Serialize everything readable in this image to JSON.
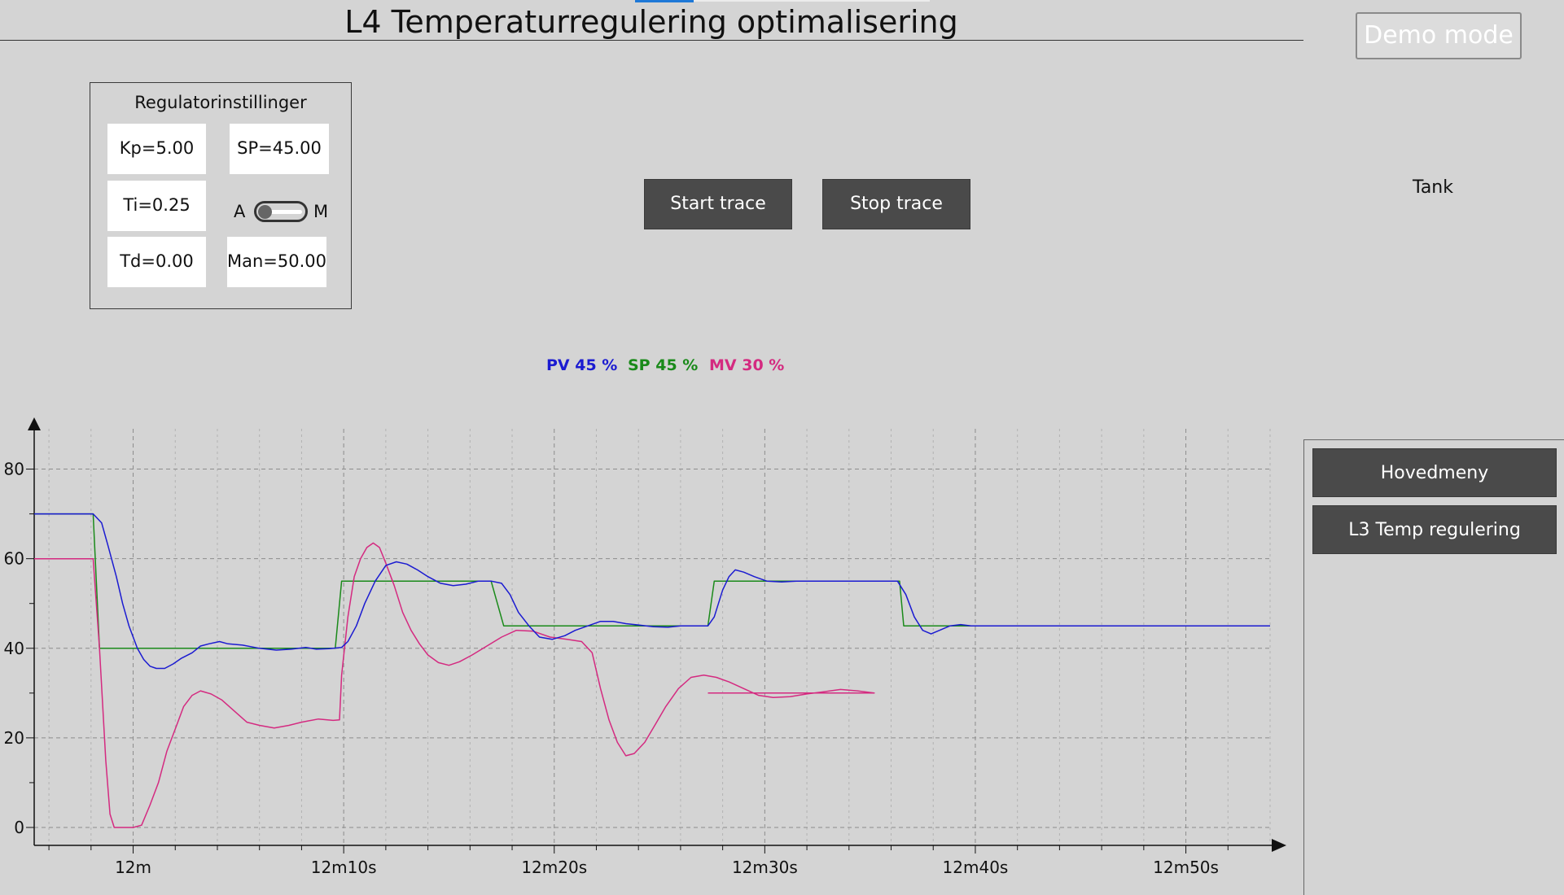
{
  "title": "L4 Temperaturregulering optimalisering",
  "demo_mode_label": "Demo mode",
  "tank_label": "Tank",
  "regulator": {
    "title": "Regulatorinstillinger",
    "kp": "Kp=5.00",
    "sp": "SP=45.00",
    "ti": "Ti=0.25",
    "td": "Td=0.00",
    "man": "Man=50.00",
    "mode_a": "A",
    "mode_m": "M"
  },
  "trace": {
    "start_label": "Start trace",
    "stop_label": "Stop trace"
  },
  "legend": {
    "pv": "PV 45 %",
    "sp": "SP 45 %",
    "mv": "MV 30 %"
  },
  "nav": {
    "home_label": "Hovedmeny",
    "l3_label": "L3 Temp regulering"
  },
  "colors": {
    "pv": "#1b1bd1",
    "sp": "#1a8a1a",
    "mv": "#d42a80",
    "accent": "#1e78d7"
  },
  "chart_data": {
    "type": "line",
    "x_unit": "seconds",
    "xlim": [
      -4.7,
      54
    ],
    "ylim": [
      -4,
      89
    ],
    "y_ticks": [
      0,
      20,
      40,
      60,
      80
    ],
    "x_ticks": [
      {
        "t": 0,
        "label": "12m"
      },
      {
        "t": 10,
        "label": "12m10s"
      },
      {
        "t": 20,
        "label": "12m20s"
      },
      {
        "t": 30,
        "label": "12m30s"
      },
      {
        "t": 40,
        "label": "12m40s"
      },
      {
        "t": 50,
        "label": "12m50s"
      }
    ],
    "grid": true,
    "series": [
      {
        "name": "SP",
        "color_key": "sp",
        "points": [
          [
            -5.8,
            70
          ],
          [
            -1.9,
            70
          ],
          [
            -1.6,
            40
          ],
          [
            9.6,
            40
          ],
          [
            9.9,
            55
          ],
          [
            17.0,
            55
          ],
          [
            17.6,
            45
          ],
          [
            27.3,
            45
          ],
          [
            27.6,
            55
          ],
          [
            36.4,
            55
          ],
          [
            36.6,
            45
          ],
          [
            54.1,
            45
          ]
        ]
      },
      {
        "name": "PV",
        "color_key": "pv",
        "points": [
          [
            -5.8,
            70
          ],
          [
            -1.9,
            70
          ],
          [
            -1.5,
            68
          ],
          [
            -1.2,
            63
          ],
          [
            -0.8,
            56
          ],
          [
            -0.5,
            50
          ],
          [
            -0.2,
            45
          ],
          [
            0.2,
            40
          ],
          [
            0.5,
            37.5
          ],
          [
            0.8,
            36
          ],
          [
            1.1,
            35.5
          ],
          [
            1.5,
            35.5
          ],
          [
            1.9,
            36.5
          ],
          [
            2.3,
            37.8
          ],
          [
            2.8,
            39
          ],
          [
            3.2,
            40.5
          ],
          [
            3.6,
            41
          ],
          [
            4.1,
            41.5
          ],
          [
            4.5,
            41
          ],
          [
            5.2,
            40.7
          ],
          [
            6.0,
            40
          ],
          [
            6.8,
            39.6
          ],
          [
            7.5,
            39.8
          ],
          [
            8.2,
            40.2
          ],
          [
            8.7,
            39.8
          ],
          [
            9.3,
            39.9
          ],
          [
            9.9,
            40.2
          ],
          [
            10.2,
            41.5
          ],
          [
            10.6,
            45
          ],
          [
            11.0,
            50
          ],
          [
            11.5,
            55
          ],
          [
            12.0,
            58.5
          ],
          [
            12.5,
            59.3
          ],
          [
            13.0,
            58.8
          ],
          [
            13.5,
            57.5
          ],
          [
            14.0,
            56
          ],
          [
            14.6,
            54.5
          ],
          [
            15.2,
            54
          ],
          [
            15.8,
            54.3
          ],
          [
            16.4,
            55
          ],
          [
            17.0,
            55
          ],
          [
            17.5,
            54.5
          ],
          [
            17.9,
            52
          ],
          [
            18.3,
            48
          ],
          [
            18.8,
            45
          ],
          [
            19.3,
            42.5
          ],
          [
            19.9,
            42
          ],
          [
            20.5,
            42.8
          ],
          [
            21.0,
            44
          ],
          [
            21.6,
            45
          ],
          [
            22.2,
            46
          ],
          [
            22.8,
            46
          ],
          [
            23.4,
            45.5
          ],
          [
            24.0,
            45.2
          ],
          [
            24.7,
            44.8
          ],
          [
            25.4,
            44.7
          ],
          [
            26.0,
            45
          ],
          [
            26.7,
            45
          ],
          [
            27.3,
            45
          ],
          [
            27.6,
            47
          ],
          [
            28.0,
            53
          ],
          [
            28.3,
            56
          ],
          [
            28.6,
            57.5
          ],
          [
            29.0,
            57
          ],
          [
            29.5,
            56
          ],
          [
            30.1,
            55
          ],
          [
            30.8,
            54.8
          ],
          [
            31.5,
            55
          ],
          [
            32.5,
            55
          ],
          [
            33.5,
            55
          ],
          [
            34.5,
            55
          ],
          [
            35.5,
            55
          ],
          [
            36.3,
            55
          ],
          [
            36.7,
            52
          ],
          [
            37.1,
            47
          ],
          [
            37.5,
            44
          ],
          [
            37.9,
            43.2
          ],
          [
            38.3,
            44
          ],
          [
            38.8,
            45
          ],
          [
            39.3,
            45.3
          ],
          [
            39.8,
            45
          ],
          [
            54.1,
            45
          ]
        ]
      },
      {
        "name": "MV",
        "color_key": "mv",
        "points": [
          [
            -5.8,
            60
          ],
          [
            -1.9,
            60
          ],
          [
            -1.6,
            40
          ],
          [
            -1.3,
            15
          ],
          [
            -1.1,
            3
          ],
          [
            -0.9,
            0
          ],
          [
            -0.5,
            0
          ],
          [
            0,
            0
          ],
          [
            0.4,
            0.5
          ],
          [
            0.8,
            5
          ],
          [
            1.2,
            10
          ],
          [
            1.6,
            17
          ],
          [
            2.0,
            22
          ],
          [
            2.4,
            27
          ],
          [
            2.8,
            29.5
          ],
          [
            3.2,
            30.5
          ],
          [
            3.7,
            29.8
          ],
          [
            4.2,
            28.5
          ],
          [
            4.8,
            26
          ],
          [
            5.4,
            23.5
          ],
          [
            6.0,
            22.8
          ],
          [
            6.7,
            22.2
          ],
          [
            7.4,
            22.8
          ],
          [
            8.0,
            23.5
          ],
          [
            8.8,
            24.2
          ],
          [
            9.5,
            23.9
          ],
          [
            9.8,
            24
          ],
          [
            9.9,
            34
          ],
          [
            10.2,
            47
          ],
          [
            10.5,
            56
          ],
          [
            10.8,
            60
          ],
          [
            11.1,
            62.5
          ],
          [
            11.4,
            63.5
          ],
          [
            11.7,
            62.5
          ],
          [
            12.0,
            59
          ],
          [
            12.4,
            54
          ],
          [
            12.8,
            48
          ],
          [
            13.2,
            44
          ],
          [
            13.6,
            41
          ],
          [
            14.0,
            38.5
          ],
          [
            14.5,
            36.8
          ],
          [
            15.0,
            36.2
          ],
          [
            15.5,
            37
          ],
          [
            16.1,
            38.5
          ],
          [
            16.8,
            40.5
          ],
          [
            17.5,
            42.5
          ],
          [
            18.2,
            44
          ],
          [
            19.0,
            43.8
          ],
          [
            19.8,
            42.5
          ],
          [
            20.6,
            42
          ],
          [
            21.3,
            41.5
          ],
          [
            21.8,
            39
          ],
          [
            22.2,
            31
          ],
          [
            22.6,
            24
          ],
          [
            23.0,
            19
          ],
          [
            23.4,
            16
          ],
          [
            23.8,
            16.5
          ],
          [
            24.3,
            19
          ],
          [
            24.8,
            23
          ],
          [
            25.3,
            27
          ],
          [
            25.9,
            31
          ],
          [
            26.5,
            33.5
          ],
          [
            27.1,
            34
          ],
          [
            27.7,
            33.5
          ],
          [
            28.3,
            32.5
          ],
          [
            29.0,
            31
          ],
          [
            29.7,
            29.5
          ],
          [
            30.4,
            29
          ],
          [
            31.2,
            29.2
          ],
          [
            32.0,
            29.8
          ],
          [
            32.8,
            30.3
          ],
          [
            33.6,
            30.8
          ],
          [
            34.4,
            30.5
          ],
          [
            35.2,
            30
          ],
          [
            27.3,
            30
          ]
        ]
      }
    ]
  }
}
